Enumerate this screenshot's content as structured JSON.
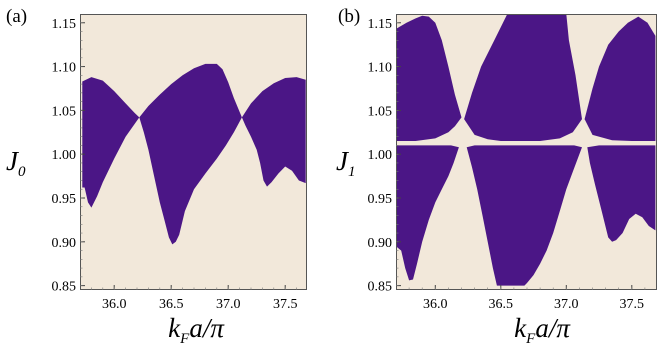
{
  "colors": {
    "background": "#f2e8da",
    "region": "#4b1686",
    "frame": "#555555"
  },
  "chart_data": [
    {
      "type": "area",
      "panel_label": "(a)",
      "ylabel": {
        "main": "J",
        "sub": "0"
      },
      "xlabel": {
        "k": "k",
        "sub": "F",
        "rest": "a/π"
      },
      "xlim": [
        35.7,
        37.7
      ],
      "ylim": [
        0.845,
        1.16
      ],
      "xticks": [
        {
          "value": 36.0,
          "label": "36.0"
        },
        {
          "value": 36.5,
          "label": "36.5"
        },
        {
          "value": 37.0,
          "label": "37.0"
        },
        {
          "value": 37.5,
          "label": "37.5"
        }
      ],
      "yticks": [
        {
          "value": 0.85,
          "label": "0.85"
        },
        {
          "value": 0.9,
          "label": "0.90"
        },
        {
          "value": 0.95,
          "label": "0.95"
        },
        {
          "value": 1.0,
          "label": "1.00"
        },
        {
          "value": 1.05,
          "label": "1.05"
        },
        {
          "value": 1.1,
          "label": "1.10"
        },
        {
          "value": 1.15,
          "label": "1.15"
        }
      ],
      "regions": [
        {
          "name": "region-1",
          "points": [
            [
              35.72,
              1.083
            ],
            [
              35.8,
              1.088
            ],
            [
              35.9,
              1.084
            ],
            [
              36.0,
              1.072
            ],
            [
              36.1,
              1.058
            ],
            [
              36.18,
              1.047
            ],
            [
              36.22,
              1.042
            ],
            [
              36.1,
              1.02
            ],
            [
              36.0,
              0.995
            ],
            [
              35.9,
              0.968
            ],
            [
              35.85,
              0.952
            ],
            [
              35.8,
              0.939
            ],
            [
              35.77,
              0.945
            ],
            [
              35.74,
              0.962
            ],
            [
              35.72,
              0.962
            ]
          ]
        },
        {
          "name": "region-2",
          "points": [
            [
              36.22,
              1.042
            ],
            [
              36.3,
              1.055
            ],
            [
              36.4,
              1.068
            ],
            [
              36.5,
              1.08
            ],
            [
              36.6,
              1.09
            ],
            [
              36.7,
              1.098
            ],
            [
              36.8,
              1.103
            ],
            [
              36.9,
              1.103
            ],
            [
              36.95,
              1.097
            ],
            [
              37.0,
              1.082
            ],
            [
              37.05,
              1.064
            ],
            [
              37.12,
              1.042
            ],
            [
              37.05,
              1.025
            ],
            [
              36.98,
              1.01
            ],
            [
              36.9,
              0.995
            ],
            [
              36.8,
              0.978
            ],
            [
              36.7,
              0.96
            ],
            [
              36.62,
              0.935
            ],
            [
              36.57,
              0.908
            ],
            [
              36.54,
              0.9
            ],
            [
              36.51,
              0.897
            ],
            [
              36.48,
              0.905
            ],
            [
              36.44,
              0.925
            ],
            [
              36.4,
              0.945
            ],
            [
              36.35,
              0.975
            ],
            [
              36.3,
              1.005
            ],
            [
              36.26,
              1.025
            ]
          ]
        },
        {
          "name": "region-3",
          "points": [
            [
              37.12,
              1.042
            ],
            [
              37.2,
              1.058
            ],
            [
              37.3,
              1.072
            ],
            [
              37.4,
              1.081
            ],
            [
              37.5,
              1.087
            ],
            [
              37.6,
              1.088
            ],
            [
              37.68,
              1.085
            ],
            [
              37.68,
              0.967
            ],
            [
              37.62,
              0.97
            ],
            [
              37.56,
              0.981
            ],
            [
              37.5,
              0.986
            ],
            [
              37.44,
              0.978
            ],
            [
              37.38,
              0.968
            ],
            [
              37.34,
              0.963
            ],
            [
              37.31,
              0.97
            ],
            [
              37.28,
              0.99
            ],
            [
              37.25,
              1.005
            ],
            [
              37.2,
              1.02
            ],
            [
              37.15,
              1.033
            ]
          ]
        }
      ]
    },
    {
      "type": "area",
      "panel_label": "(b)",
      "ylabel": {
        "main": "J",
        "sub": "1"
      },
      "xlabel": {
        "k": "k",
        "sub": "F",
        "rest": "a/π"
      },
      "xlim": [
        35.7,
        37.7
      ],
      "ylim": [
        0.845,
        1.16
      ],
      "xticks": [
        {
          "value": 36.0,
          "label": "36.0"
        },
        {
          "value": 36.5,
          "label": "36.5"
        },
        {
          "value": 37.0,
          "label": "37.0"
        },
        {
          "value": 37.5,
          "label": "37.5"
        }
      ],
      "yticks": [
        {
          "value": 0.85,
          "label": "0.85"
        },
        {
          "value": 0.9,
          "label": "0.90"
        },
        {
          "value": 0.95,
          "label": "0.95"
        },
        {
          "value": 1.0,
          "label": "1.00"
        },
        {
          "value": 1.05,
          "label": "1.05"
        },
        {
          "value": 1.1,
          "label": "1.10"
        },
        {
          "value": 1.15,
          "label": "1.15"
        }
      ],
      "regions": [
        {
          "name": "upper-left",
          "points": [
            [
              35.7,
              1.143
            ],
            [
              35.78,
              1.15
            ],
            [
              35.85,
              1.155
            ],
            [
              35.9,
              1.158
            ],
            [
              35.95,
              1.157
            ],
            [
              36.0,
              1.15
            ],
            [
              36.05,
              1.13
            ],
            [
              36.1,
              1.1
            ],
            [
              36.15,
              1.068
            ],
            [
              36.2,
              1.042
            ],
            [
              36.15,
              1.032
            ],
            [
              36.1,
              1.025
            ],
            [
              36.0,
              1.018
            ],
            [
              35.85,
              1.015
            ],
            [
              35.7,
              1.015
            ]
          ]
        },
        {
          "name": "upper-middle",
          "points": [
            [
              36.22,
              1.04
            ],
            [
              36.28,
              1.07
            ],
            [
              36.35,
              1.1
            ],
            [
              36.45,
              1.13
            ],
            [
              36.55,
              1.16
            ],
            [
              37.0,
              1.16
            ],
            [
              37.02,
              1.13
            ],
            [
              37.07,
              1.09
            ],
            [
              37.1,
              1.06
            ],
            [
              37.12,
              1.04
            ],
            [
              37.05,
              1.025
            ],
            [
              36.95,
              1.018
            ],
            [
              36.8,
              1.015
            ],
            [
              36.5,
              1.015
            ],
            [
              36.4,
              1.017
            ],
            [
              36.3,
              1.022
            ]
          ]
        },
        {
          "name": "upper-right",
          "points": [
            [
              37.14,
              1.04
            ],
            [
              37.2,
              1.075
            ],
            [
              37.25,
              1.1
            ],
            [
              37.32,
              1.125
            ],
            [
              37.4,
              1.14
            ],
            [
              37.47,
              1.15
            ],
            [
              37.55,
              1.157
            ],
            [
              37.62,
              1.15
            ],
            [
              37.68,
              1.135
            ],
            [
              37.68,
              1.015
            ],
            [
              37.5,
              1.015
            ],
            [
              37.35,
              1.016
            ],
            [
              37.2,
              1.022
            ]
          ]
        },
        {
          "name": "lower-left",
          "points": [
            [
              35.7,
              1.01
            ],
            [
              35.9,
              1.01
            ],
            [
              36.0,
              1.01
            ],
            [
              36.12,
              1.01
            ],
            [
              36.18,
              1.008
            ],
            [
              36.14,
              0.99
            ],
            [
              36.1,
              0.975
            ],
            [
              36.05,
              0.96
            ],
            [
              36.0,
              0.945
            ],
            [
              35.95,
              0.925
            ],
            [
              35.9,
              0.9
            ],
            [
              35.86,
              0.875
            ],
            [
              35.83,
              0.857
            ],
            [
              35.8,
              0.856
            ],
            [
              35.77,
              0.87
            ],
            [
              35.74,
              0.89
            ],
            [
              35.7,
              0.895
            ]
          ]
        },
        {
          "name": "lower-middle",
          "points": [
            [
              36.24,
              1.008
            ],
            [
              36.3,
              1.01
            ],
            [
              36.45,
              1.01
            ],
            [
              36.6,
              1.01
            ],
            [
              36.8,
              1.01
            ],
            [
              36.95,
              1.01
            ],
            [
              37.06,
              1.01
            ],
            [
              37.12,
              1.008
            ],
            [
              37.05,
              0.98
            ],
            [
              37.0,
              0.96
            ],
            [
              36.95,
              0.935
            ],
            [
              36.9,
              0.91
            ],
            [
              36.85,
              0.89
            ],
            [
              36.8,
              0.875
            ],
            [
              36.75,
              0.862
            ],
            [
              36.7,
              0.853
            ],
            [
              36.68,
              0.85
            ],
            [
              36.47,
              0.85
            ],
            [
              36.44,
              0.87
            ],
            [
              36.4,
              0.9
            ],
            [
              36.36,
              0.93
            ],
            [
              36.32,
              0.96
            ],
            [
              36.28,
              0.985
            ]
          ]
        },
        {
          "name": "lower-right",
          "points": [
            [
              37.16,
              1.008
            ],
            [
              37.25,
              1.01
            ],
            [
              37.4,
              1.01
            ],
            [
              37.55,
              1.01
            ],
            [
              37.68,
              1.01
            ],
            [
              37.68,
              0.913
            ],
            [
              37.63,
              0.918
            ],
            [
              37.58,
              0.928
            ],
            [
              37.53,
              0.932
            ],
            [
              37.48,
              0.926
            ],
            [
              37.43,
              0.91
            ],
            [
              37.38,
              0.902
            ],
            [
              37.35,
              0.9
            ],
            [
              37.32,
              0.905
            ],
            [
              37.27,
              0.935
            ],
            [
              37.22,
              0.965
            ],
            [
              37.18,
              0.99
            ]
          ]
        }
      ]
    }
  ]
}
